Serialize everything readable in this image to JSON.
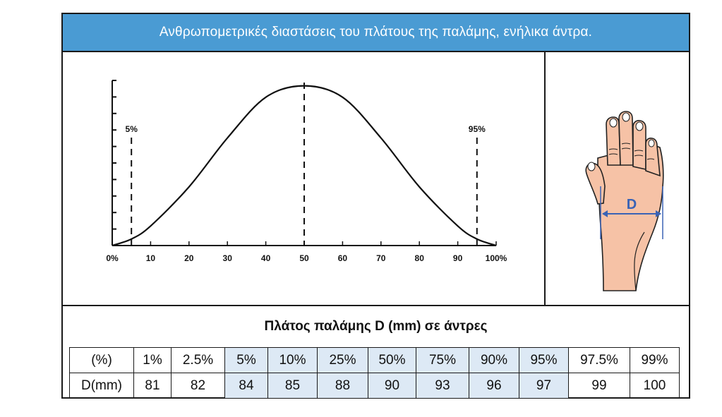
{
  "header": {
    "title": "Ανθρωπομετρικές διαστάσεις του πλάτους της παλάμης, ενήλικα άντρα."
  },
  "chart_data": {
    "type": "line",
    "title": "",
    "xlabel": "",
    "ylabel": "",
    "x_ticks": [
      "0%",
      "10",
      "20",
      "30",
      "40",
      "50",
      "60",
      "70",
      "80",
      "90",
      "100%"
    ],
    "xlim": [
      0,
      100
    ],
    "y_tick_count": 10,
    "curve": "normal distribution",
    "series": [
      {
        "x": [
          0,
          5,
          10,
          20,
          30,
          40,
          50,
          60,
          70,
          80,
          90,
          95,
          100
        ],
        "y": [
          0.0,
          0.04,
          0.12,
          0.36,
          0.66,
          0.91,
          0.98,
          0.91,
          0.66,
          0.36,
          0.12,
          0.04,
          0.0
        ]
      }
    ],
    "annotations": [
      {
        "x": 5,
        "label": "5%",
        "style": "dashed"
      },
      {
        "x": 50,
        "label": "",
        "style": "dashed"
      },
      {
        "x": 95,
        "label": "95%",
        "style": "dashed"
      }
    ],
    "grid": false,
    "line_color": "#111111"
  },
  "hand": {
    "label": "D",
    "accent_color": "#3a63b5",
    "skin_color": "#f6c2a6"
  },
  "table": {
    "title": "Πλάτος παλάμης D (mm) σε άντρες",
    "row_labels": [
      "(%)",
      "D(mm)"
    ],
    "percentiles": [
      "1%",
      "2.5%",
      "5%",
      "10%",
      "25%",
      "50%",
      "75%",
      "90%",
      "95%",
      "97.5%",
      "99%"
    ],
    "values": [
      "81",
      "82",
      "84",
      "85",
      "88",
      "90",
      "93",
      "96",
      "97",
      "99",
      "100"
    ],
    "highlight_color": "#dde9f5"
  },
  "colors": {
    "title_bar": "#4a9bd3",
    "border": "#1a1a1a"
  }
}
